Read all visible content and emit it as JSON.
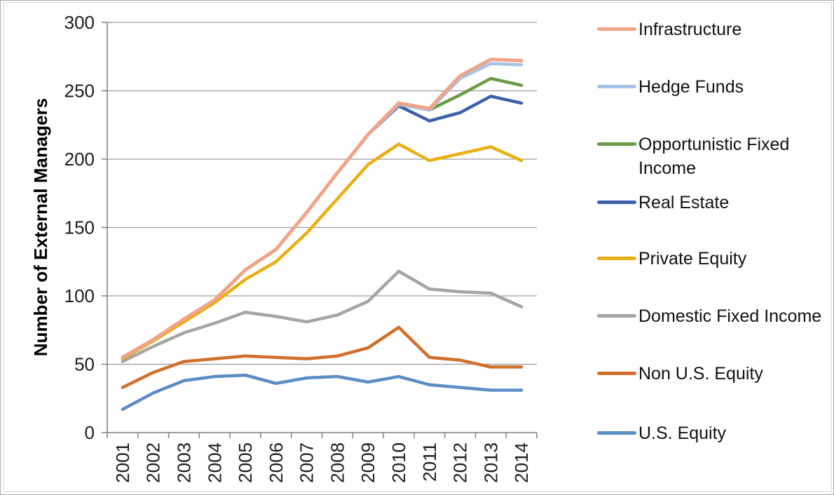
{
  "chart_data": {
    "type": "line",
    "ylabel": "Number of External Managers",
    "xlabel": "",
    "ylim": [
      0,
      300
    ],
    "yticks": [
      0,
      50,
      100,
      150,
      200,
      250,
      300
    ],
    "grid": "horizontal",
    "legend_position": "right",
    "categories": [
      "2001",
      "2002",
      "2003",
      "2004",
      "2005",
      "2006",
      "2007",
      "2008",
      "2009",
      "2010",
      "2011",
      "2012",
      "2013",
      "2014"
    ],
    "series": [
      {
        "name": "Infrastructure",
        "color": "#F2A489",
        "values": [
          55,
          68,
          83,
          97,
          119,
          134,
          161,
          190,
          218,
          241,
          237,
          261,
          273,
          272
        ]
      },
      {
        "name": "Hedge Funds",
        "color": "#A6C4E7",
        "values": [
          55,
          68,
          83,
          97,
          119,
          134,
          161,
          190,
          218,
          240,
          236,
          259,
          270,
          269
        ]
      },
      {
        "name": "Opportunistic Fixed Income",
        "color": "#6A9C48",
        "values": [
          55,
          68,
          83,
          97,
          119,
          134,
          161,
          190,
          218,
          240,
          236,
          247,
          259,
          254
        ]
      },
      {
        "name": "Real Estate",
        "color": "#3D60AC",
        "values": [
          55,
          68,
          83,
          97,
          119,
          134,
          161,
          190,
          218,
          239,
          228,
          234,
          246,
          241
        ]
      },
      {
        "name": "Private Equity",
        "color": "#E9AF13",
        "values": [
          54,
          67,
          81,
          95,
          112,
          125,
          146,
          171,
          196,
          211,
          199,
          204,
          209,
          199
        ]
      },
      {
        "name": "Domestic Fixed Income",
        "color": "#A5A5A5",
        "values": [
          52,
          63,
          73,
          80,
          88,
          85,
          81,
          86,
          96,
          118,
          105,
          103,
          102,
          92
        ]
      },
      {
        "name": "Non U.S. Equity",
        "color": "#D1702C",
        "values": [
          33,
          44,
          52,
          54,
          56,
          55,
          54,
          56,
          62,
          77,
          55,
          53,
          48,
          48
        ]
      },
      {
        "name": "U.S. Equity",
        "color": "#5C8DC5",
        "values": [
          17,
          29,
          38,
          41,
          42,
          36,
          40,
          41,
          37,
          41,
          35,
          33,
          31,
          31
        ]
      }
    ]
  }
}
